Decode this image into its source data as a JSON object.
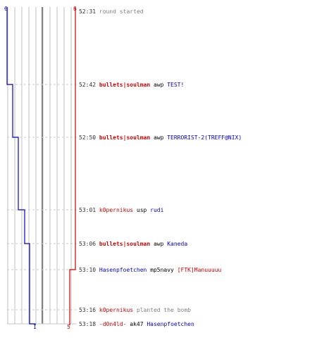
{
  "chart_data": {
    "type": "line",
    "axis": {
      "blue_top": "6",
      "red_top": "6",
      "blue_bottom": "1",
      "red_bottom": "5"
    },
    "colors": {
      "blue": "#0000cc",
      "red": "#cc0000",
      "time": "#333333",
      "action": "#808080",
      "grid": "#c0c0c0",
      "dash": "#c8c8c8",
      "center": "#808080"
    },
    "series": [
      {
        "team": "blue",
        "counts": [
          6,
          5,
          4,
          3,
          2,
          2,
          2,
          1
        ]
      },
      {
        "team": "red",
        "counts": [
          6,
          6,
          6,
          6,
          6,
          5,
          5,
          5
        ]
      }
    ],
    "events": [
      {
        "time": "52:31",
        "parts": [
          {
            "text": "round started",
            "color": "action"
          }
        ]
      },
      {
        "time": "52:42",
        "parts": [
          {
            "text": "bullets|soulman",
            "color": "red",
            "bold": true
          },
          {
            "text": "awp",
            "color": "black"
          },
          {
            "text": "TEST!",
            "color": "blue"
          }
        ]
      },
      {
        "time": "52:50",
        "parts": [
          {
            "text": "bullets|soulman",
            "color": "red",
            "bold": true
          },
          {
            "text": "awp",
            "color": "black"
          },
          {
            "text": "TERRORIST-2(TREFF@NIX)",
            "color": "blue"
          }
        ]
      },
      {
        "time": "53:01",
        "parts": [
          {
            "text": "k0pernikus",
            "color": "red"
          },
          {
            "text": "usp",
            "color": "black"
          },
          {
            "text": "rudi",
            "color": "blue"
          }
        ]
      },
      {
        "time": "53:06",
        "parts": [
          {
            "text": "bullets|soulman",
            "color": "red",
            "bold": true
          },
          {
            "text": "awp",
            "color": "black"
          },
          {
            "text": "Kaneda",
            "color": "blue"
          }
        ]
      },
      {
        "time": "53:10",
        "parts": [
          {
            "text": "Hasenpfoetchen",
            "color": "blue"
          },
          {
            "text": "mp5navy",
            "color": "black"
          },
          {
            "text": "[FTK]Manuuuuu",
            "color": "red"
          }
        ]
      },
      {
        "time": "53:16",
        "parts": [
          {
            "text": "k0pernikus",
            "color": "red"
          },
          {
            "text": "planted the bomb",
            "color": "action"
          }
        ]
      },
      {
        "time": "53:18",
        "parts": [
          {
            "text": "-d0n4ld-",
            "color": "red"
          },
          {
            "text": "ak47",
            "color": "black"
          },
          {
            "text": "Hasenpfoetchen",
            "color": "blue"
          }
        ]
      }
    ]
  }
}
